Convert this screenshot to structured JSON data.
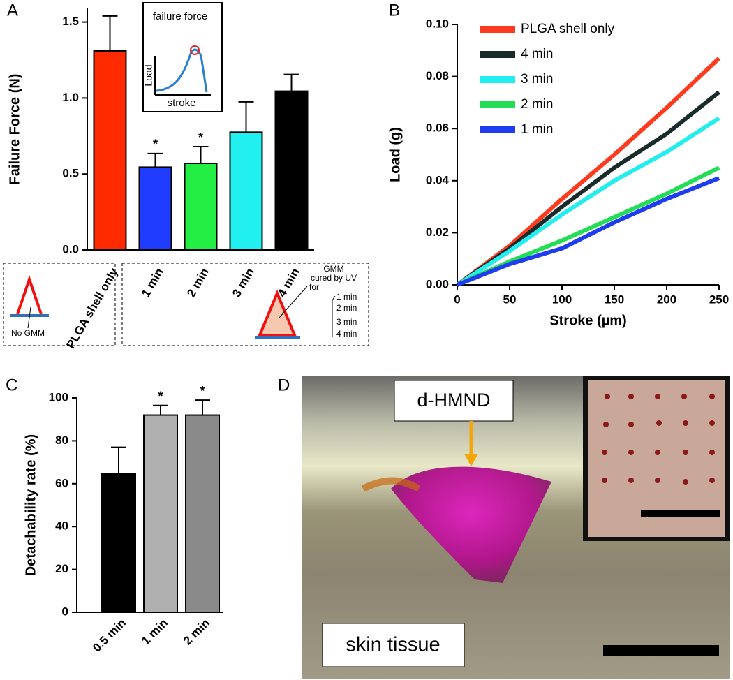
{
  "chart_data": [
    {
      "type": "bar",
      "panel_label": "A",
      "ylabel": "Failure Force (N)",
      "categories": [
        "PLGA shell only",
        "1 min",
        "2 min",
        "3 min",
        "4 min"
      ],
      "values": [
        1.31,
        0.545,
        0.57,
        0.775,
        1.045
      ],
      "errors": [
        0.23,
        0.09,
        0.11,
        0.2,
        0.11
      ],
      "significance": [
        null,
        "*",
        "*",
        null,
        null
      ],
      "colors": [
        "#ff2a00",
        "#1f3cff",
        "#22ee44",
        "#22f0f0",
        "#000000"
      ],
      "ylim": [
        0,
        1.59
      ],
      "yticks": [
        {
          "value": 0,
          "label": "0.0"
        },
        0.5,
        {
          "value": 1,
          "label": "1.0"
        },
        1.5
      ],
      "inset": {
        "title": "failure force",
        "ylabel": "Load",
        "xlabel": "stroke"
      },
      "schematic": {
        "control_note": "No GMM",
        "cure_note": [
          "GMM",
          "cured by UV",
          "for"
        ],
        "cure_times": [
          "1 min",
          "2 min",
          "3 min",
          "4 min"
        ]
      }
    },
    {
      "type": "line",
      "panel_label": "B",
      "xlabel": "Stroke (µm)",
      "ylabel": "Load (g)",
      "x": [
        0,
        50,
        100,
        150,
        200,
        250
      ],
      "series": [
        {
          "name": "PLGA shell only",
          "color": "#ff3b1f",
          "values": [
            0,
            0.015,
            0.033,
            0.05,
            0.068,
            0.087
          ]
        },
        {
          "name": "4 min",
          "color": "#1a2b2b",
          "values": [
            0,
            0.014,
            0.03,
            0.045,
            0.058,
            0.074
          ]
        },
        {
          "name": "3 min",
          "color": "#22eeee",
          "values": [
            0,
            0.013,
            0.027,
            0.04,
            0.051,
            0.064
          ]
        },
        {
          "name": "2 min",
          "color": "#22dd55",
          "values": [
            0,
            0.009,
            0.017,
            0.026,
            0.035,
            0.045
          ]
        },
        {
          "name": "1 min",
          "color": "#1f3cf0",
          "values": [
            0,
            0.008,
            0.014,
            0.024,
            0.033,
            0.041
          ]
        }
      ],
      "xlim": [
        0,
        250
      ],
      "xticks": [
        0,
        50,
        100,
        150,
        200,
        250
      ],
      "ylim": [
        0,
        0.1
      ],
      "yticks": [
        {
          "value": 0,
          "label": "0.00"
        },
        {
          "value": 0.02,
          "label": "0.02"
        },
        {
          "value": 0.04,
          "label": "0.04"
        },
        {
          "value": 0.06,
          "label": "0.06"
        },
        {
          "value": 0.08,
          "label": "0.08"
        },
        {
          "value": 0.1,
          "label": "0.10"
        }
      ],
      "legend": "upper left"
    },
    {
      "type": "bar",
      "panel_label": "C",
      "ylabel": "Detachability rate (%)",
      "categories": [
        "0.5 min",
        "1 min",
        "2 min"
      ],
      "values": [
        64.5,
        92,
        92
      ],
      "errors": [
        12.5,
        4.5,
        7
      ],
      "significance": [
        null,
        "*",
        "*"
      ],
      "colors": [
        "#000000",
        "#b0b0b0",
        "#8a8a8a"
      ],
      "ylim": [
        0,
        100
      ],
      "yticks": [
        0,
        20,
        40,
        60,
        80,
        100
      ]
    }
  ],
  "image_panel": {
    "panel_label": "D",
    "callouts": [
      "d-HMND",
      "skin tissue"
    ]
  }
}
